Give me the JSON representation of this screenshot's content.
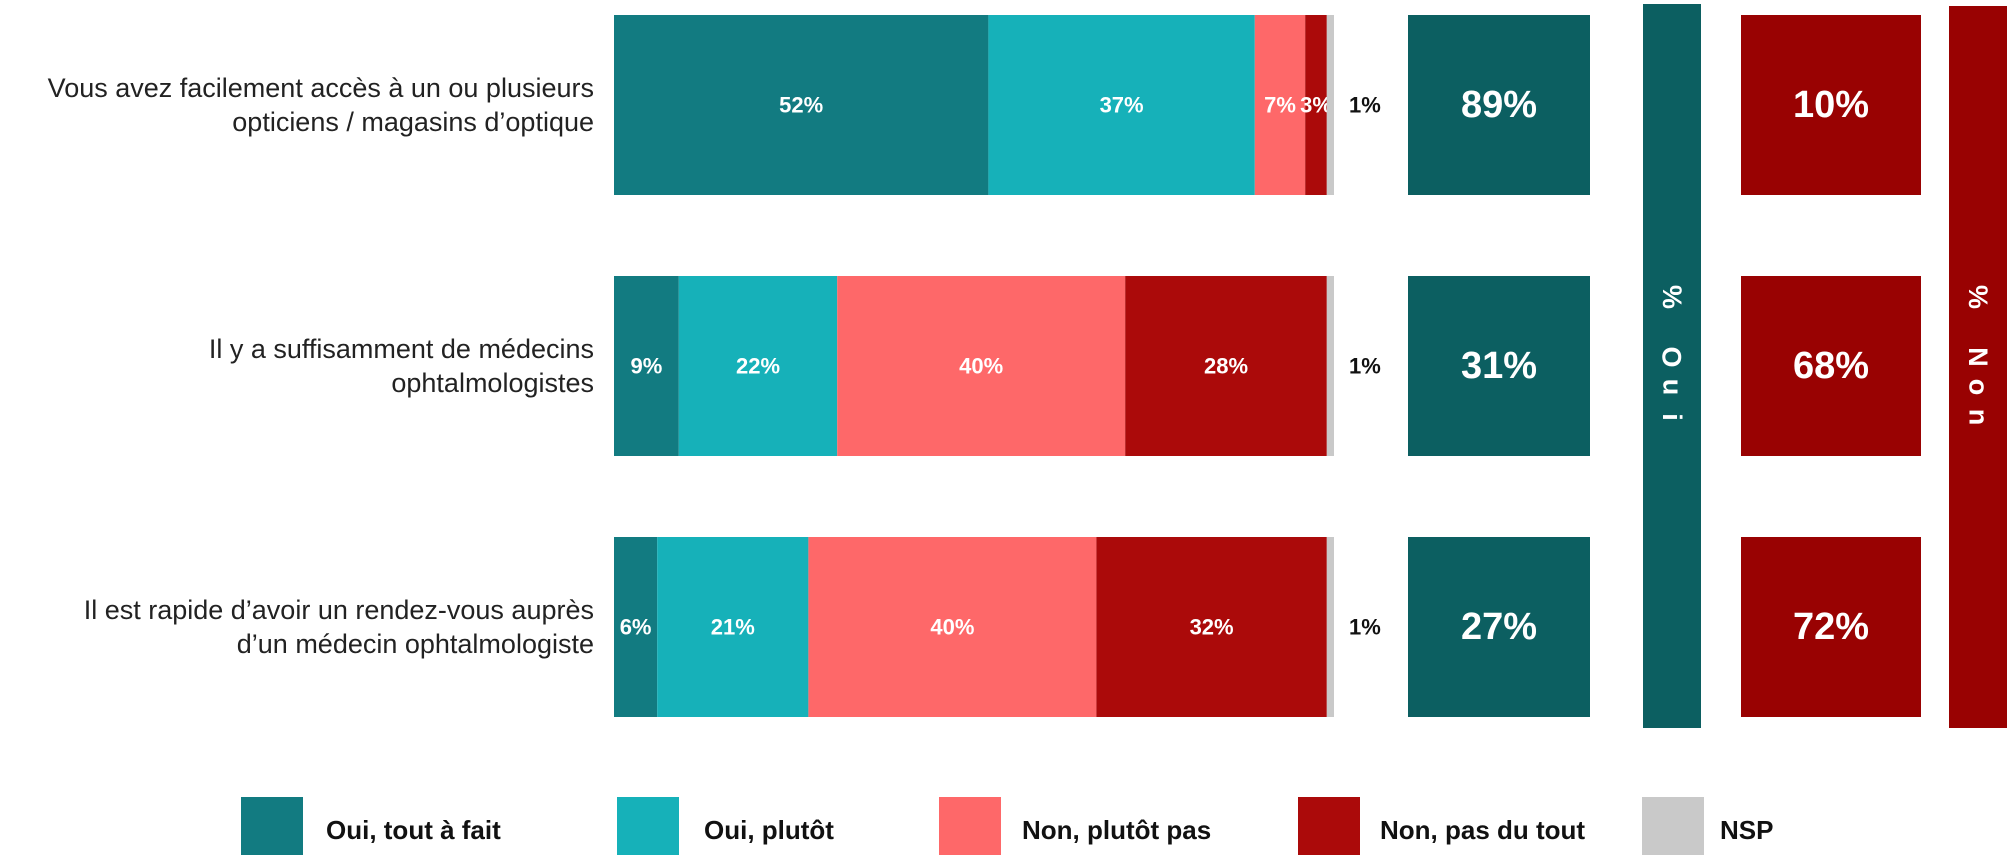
{
  "chart_data": {
    "type": "bar",
    "stacked": true,
    "orientation": "horizontal",
    "categories": [
      [
        "Vous avez facilement accès à un ou plusieurs",
        "opticiens / magasins d’optique"
      ],
      [
        "Il y a suffisamment de médecins",
        "ophtalmologistes"
      ],
      [
        "Il est rapide d’avoir un rendez-vous auprès",
        "d’un médecin ophtalmologiste"
      ]
    ],
    "series": [
      {
        "name": "Oui, tout à fait",
        "color": "#127b81",
        "values": [
          52,
          9,
          6
        ],
        "labels": [
          "52%",
          "9%",
          "6%"
        ]
      },
      {
        "name": "Oui, plutôt",
        "color": "#16b1b9",
        "values": [
          37,
          22,
          21
        ],
        "labels": [
          "37%",
          "22%",
          "21%"
        ]
      },
      {
        "name": "Non, plutôt pas",
        "color": "#fe6869",
        "values": [
          7,
          40,
          40
        ],
        "labels": [
          "7%",
          "40%",
          "40%"
        ]
      },
      {
        "name": "Non, pas du tout",
        "color": "#ab0a0a",
        "values": [
          3,
          28,
          32
        ],
        "labels": [
          "3%",
          "28%",
          "32%"
        ]
      },
      {
        "name": "NSP",
        "color": "#c9c9c9",
        "values": [
          1,
          1,
          1
        ],
        "labels": [
          "1%",
          "1%",
          "1%"
        ]
      }
    ],
    "totals": {
      "oui": {
        "label": "% Oui",
        "color": "#0c5f61",
        "values": [
          "89%",
          "31%",
          "27%"
        ]
      },
      "non": {
        "label": "% Non",
        "color": "#990202",
        "values": [
          "10%",
          "68%",
          "72%"
        ]
      }
    },
    "legend_position": "bottom",
    "xlim": [
      0,
      100
    ]
  }
}
